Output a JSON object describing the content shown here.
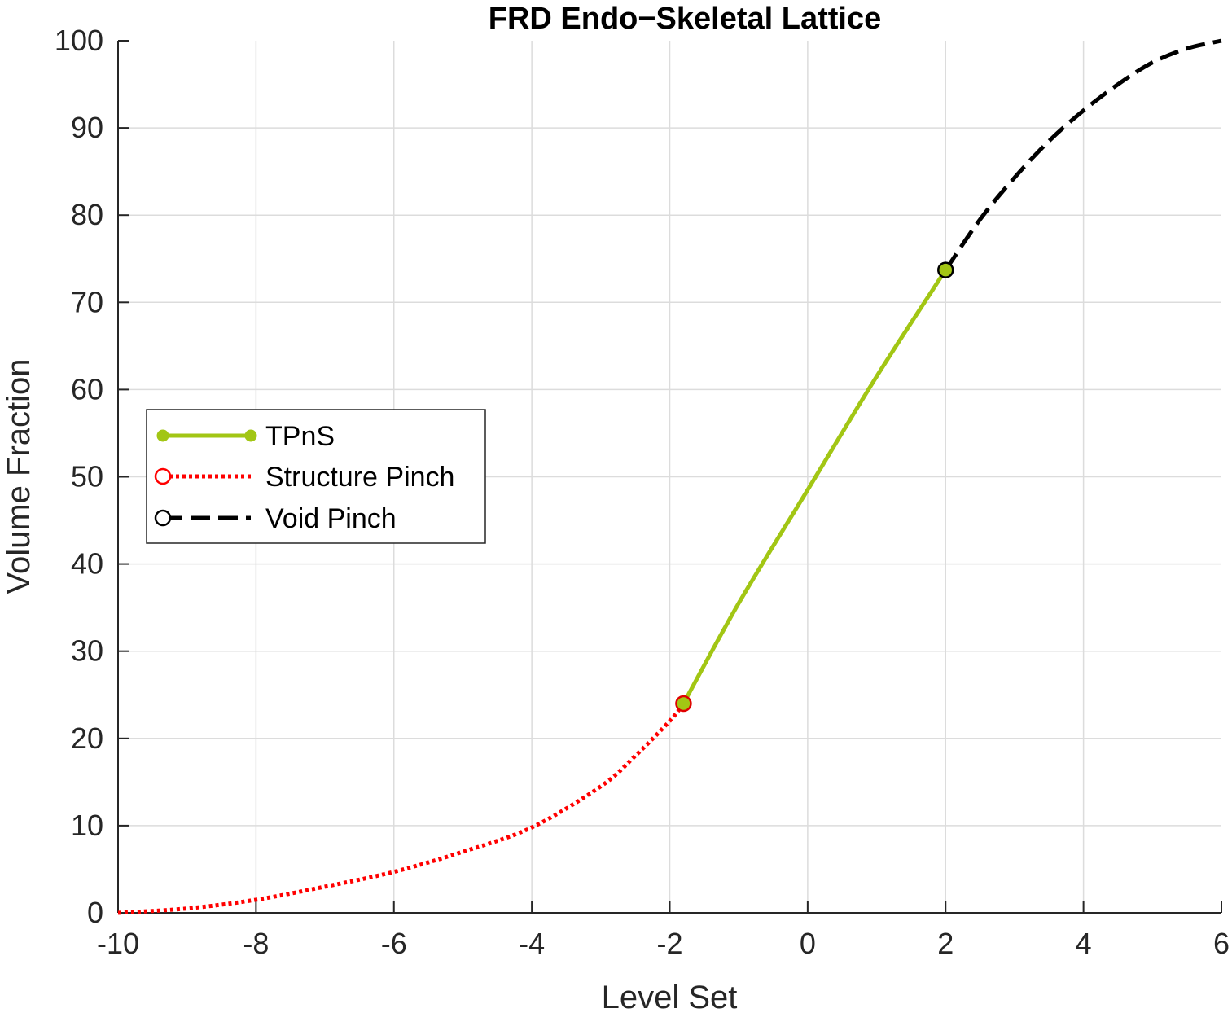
{
  "chart_data": {
    "type": "line",
    "title": "FRD Endo−Skeletal Lattice",
    "xlabel": "Level Set",
    "ylabel": "Volume Fraction",
    "xlim": [
      -10,
      6
    ],
    "ylim": [
      0,
      100
    ],
    "xticks": [
      -10,
      -8,
      -6,
      -4,
      -2,
      0,
      2,
      4,
      6
    ],
    "yticks": [
      0,
      10,
      20,
      30,
      40,
      50,
      60,
      70,
      80,
      90,
      100
    ],
    "grid": true,
    "legend_position": "left",
    "series": [
      {
        "name": "TPnS",
        "color": "#a2c614",
        "line_style": "solid",
        "marker": "filled-circle",
        "x": [
          -1.8,
          -1.0,
          0.0,
          1.0,
          2.0
        ],
        "y": [
          24.0,
          35.5,
          48.5,
          61.5,
          73.7
        ],
        "endpoint_markers": [
          {
            "x": -1.8,
            "y": 24.0,
            "edge": "#e00000",
            "fill": "#a2c614"
          },
          {
            "x": 2.0,
            "y": 73.7,
            "edge": "#000000",
            "fill": "#a2c614"
          }
        ]
      },
      {
        "name": "Structure Pinch",
        "color": "#ff0000",
        "line_style": "dotted",
        "marker": "open-circle",
        "x": [
          -10,
          -9,
          -8,
          -7,
          -6,
          -5,
          -4,
          -3,
          -2.5,
          -2,
          -1.8
        ],
        "y": [
          0,
          0.5,
          1.5,
          3.0,
          4.7,
          7.0,
          9.8,
          14.5,
          18.0,
          22.0,
          24.0
        ]
      },
      {
        "name": "Void Pinch",
        "color": "#000000",
        "line_style": "dashed",
        "marker": "open-circle",
        "x": [
          2,
          2.5,
          3,
          3.5,
          4,
          4.5,
          5,
          5.5,
          6
        ],
        "y": [
          73.7,
          79.5,
          84.3,
          88.5,
          92.0,
          95.0,
          97.5,
          99.1,
          100
        ]
      }
    ]
  }
}
